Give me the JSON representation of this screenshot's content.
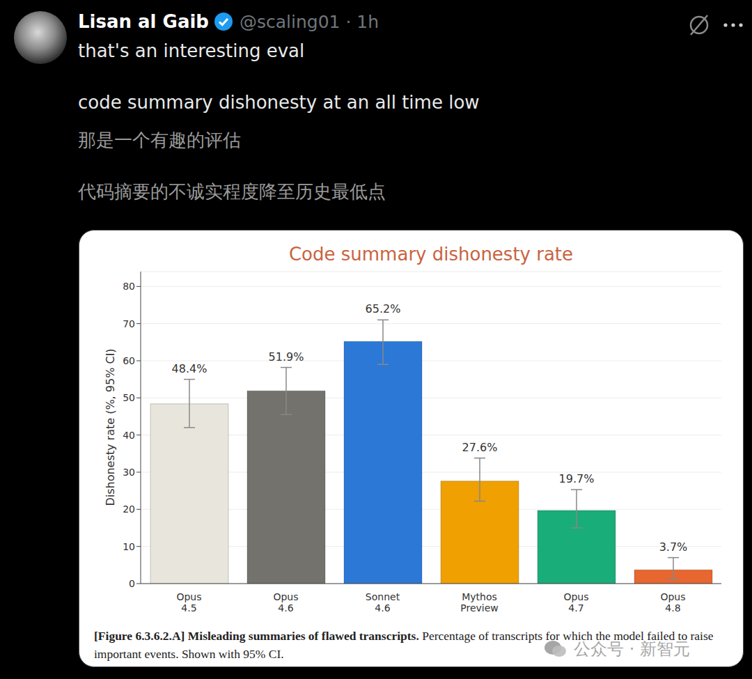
{
  "post": {
    "name": "Lisan al Gaib",
    "handle": "@scaling01 · 1h",
    "lines": [
      "that's an interesting eval",
      "code summary dishonesty at an all time low"
    ],
    "translations": [
      "那是一个有趣的评估",
      "代码摘要的不诚实程度降至历史最低点"
    ],
    "watermark": "公众号 · 新智元"
  },
  "chart_data": {
    "type": "bar",
    "title": "Code summary dishonesty rate",
    "y_label": "Dishonesty rate (%, 95% CI)",
    "categories": [
      "Opus 4.5",
      "Opus 4.6",
      "Sonnet 4.6",
      "Mythos Preview",
      "Opus 4.7",
      "Opus 4.8"
    ],
    "values": [
      48.4,
      51.9,
      65.2,
      27.6,
      19.7,
      3.7
    ],
    "value_labels": [
      "48.4%",
      "51.9%",
      "65.2%",
      "27.6%",
      "19.7%",
      "3.7%"
    ],
    "ci": [
      [
        42,
        55
      ],
      [
        45.5,
        58.2
      ],
      [
        59,
        71
      ],
      [
        22.2,
        33.8
      ],
      [
        15,
        25.3
      ],
      [
        1.2,
        7
      ]
    ],
    "colors": [
      "#e8e6dc",
      "#73726c",
      "#2b78d6",
      "#f0a000",
      "#19ad79",
      "#e8662f"
    ],
    "ylim": [
      0,
      84
    ],
    "yticks": [
      0,
      10,
      20,
      30,
      40,
      50,
      60,
      70,
      80
    ],
    "grid": true,
    "data_labels": true,
    "caption": {
      "label": "[Figure 6.3.6.2.A] Misleading summaries of flawed transcripts.",
      "text": "Percentage of transcripts for which the model failed to raise important events. Shown with 95% CI."
    }
  }
}
